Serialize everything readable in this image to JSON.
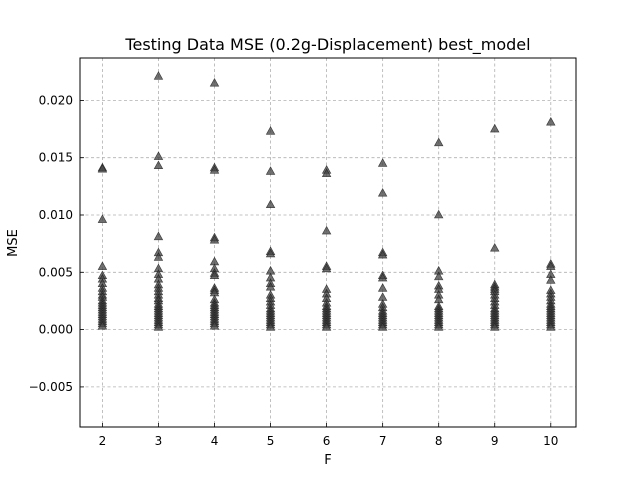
{
  "chart_data": {
    "type": "scatter",
    "title": "Testing Data MSE (0.2g-Displacement) best_model",
    "xlabel": "F",
    "ylabel": "MSE",
    "xlim": [
      1.6,
      10.45
    ],
    "ylim": [
      -0.0085,
      0.0237
    ],
    "x_ticks": [
      2,
      3,
      4,
      5,
      6,
      7,
      8,
      9,
      10
    ],
    "y_ticks": [
      -0.005,
      0.0,
      0.005,
      0.01,
      0.015,
      0.02
    ],
    "y_tick_labels": [
      "−0.005",
      "0.000",
      "0.005",
      "0.010",
      "0.015",
      "0.020"
    ],
    "grid": true,
    "marker": "triangle-up",
    "marker_color": "#404040",
    "series": [
      {
        "points": [
          {
            "x": 2,
            "y": [
              0.0141,
              0.014,
              0.0096,
              0.0055,
              0.0047,
              0.0044,
              0.004,
              0.0036,
              0.0033,
              0.003,
              0.0028,
              0.0025,
              0.0023,
              0.0021,
              0.0019,
              0.0017,
              0.0015,
              0.0013,
              0.0011,
              0.0009,
              0.0007,
              0.0005,
              0.0003
            ]
          },
          {
            "x": 3,
            "y": [
              0.0221,
              0.0151,
              0.0143,
              0.0081,
              0.0067,
              0.0063,
              0.0053,
              0.0048,
              0.0044,
              0.0039,
              0.0036,
              0.0033,
              0.003,
              0.0027,
              0.0025,
              0.0022,
              0.002,
              0.0018,
              0.0016,
              0.0014,
              0.0012,
              0.001,
              0.0008,
              0.0006,
              0.0004,
              0.0002
            ]
          },
          {
            "x": 4,
            "y": [
              0.0215,
              0.0141,
              0.0139,
              0.008,
              0.0078,
              0.0059,
              0.0053,
              0.0049,
              0.0047,
              0.0036,
              0.0034,
              0.0032,
              0.0026,
              0.0023,
              0.0021,
              0.0019,
              0.0017,
              0.0015,
              0.0013,
              0.0011,
              0.0009,
              0.0007,
              0.0005,
              0.0003
            ]
          },
          {
            "x": 5,
            "y": [
              0.0173,
              0.0138,
              0.0109,
              0.0068,
              0.0066,
              0.0051,
              0.0045,
              0.004,
              0.0037,
              0.003,
              0.0027,
              0.0024,
              0.0021,
              0.0018,
              0.0016,
              0.0014,
              0.0012,
              0.001,
              0.0008,
              0.0006,
              0.0004,
              0.0002
            ]
          },
          {
            "x": 6,
            "y": [
              0.0139,
              0.0136,
              0.0086,
              0.0055,
              0.0053,
              0.0035,
              0.0031,
              0.0027,
              0.0023,
              0.002,
              0.0018,
              0.0016,
              0.0014,
              0.0012,
              0.001,
              0.0008,
              0.0006,
              0.0004,
              0.0002
            ]
          },
          {
            "x": 7,
            "y": [
              0.0145,
              0.0119,
              0.0067,
              0.0065,
              0.0047,
              0.0045,
              0.0036,
              0.0028,
              0.0022,
              0.0019,
              0.0016,
              0.0014,
              0.0012,
              0.001,
              0.0008,
              0.0006,
              0.0004,
              0.0002
            ]
          },
          {
            "x": 8,
            "y": [
              0.0163,
              0.01,
              0.0051,
              0.0046,
              0.0038,
              0.0035,
              0.003,
              0.0026,
              0.002,
              0.0018,
              0.0016,
              0.0014,
              0.0012,
              0.001,
              0.0008,
              0.0006,
              0.0004,
              0.0002
            ]
          },
          {
            "x": 9,
            "y": [
              0.0175,
              0.0071,
              0.0039,
              0.0037,
              0.0035,
              0.0033,
              0.003,
              0.0027,
              0.0024,
              0.0021,
              0.0018,
              0.0016,
              0.0014,
              0.0012,
              0.001,
              0.0008,
              0.0006,
              0.0004,
              0.0002
            ]
          },
          {
            "x": 10,
            "y": [
              0.0181,
              0.0057,
              0.0055,
              0.0048,
              0.0043,
              0.0034,
              0.0031,
              0.0028,
              0.0025,
              0.0022,
              0.002,
              0.0018,
              0.0016,
              0.0014,
              0.0012,
              0.001,
              0.0008,
              0.0006,
              0.0004,
              0.0002
            ]
          }
        ]
      }
    ]
  }
}
